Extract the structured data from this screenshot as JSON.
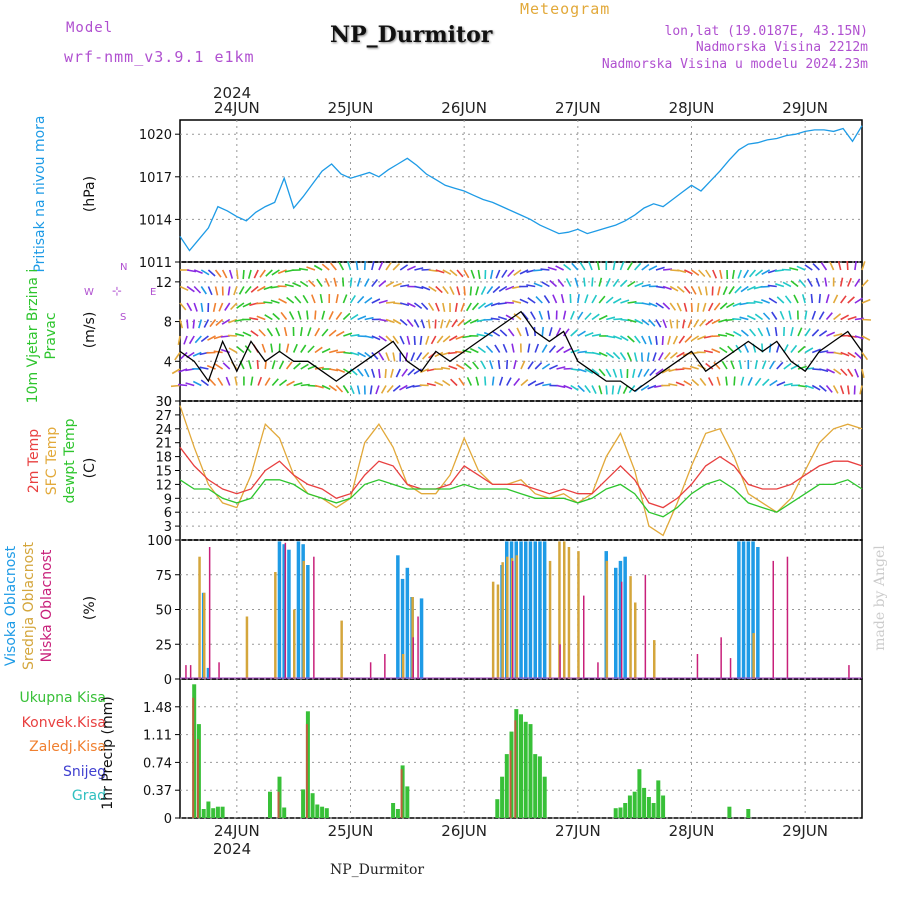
{
  "header": {
    "title": "NP_Durmitor",
    "model_label": "Model",
    "model_name": "wrf-nmm_v3.9.1 e1km",
    "meteogram_label": "Meteogram",
    "lonlat": "lon,lat (19.0187E, 43.15N)",
    "elevation": "Nadmorska Visina 2212m",
    "model_elevation": "Nadmorska Visina u modelu 2024.23m",
    "year_top": "2024",
    "year_bottom": "2024",
    "footer": "NP_Durmitor",
    "watermark": "made by Angel"
  },
  "colors": {
    "pressure": "#1e9be6",
    "temp2m": "#e84040",
    "sfc": "#e2a93a",
    "dewpt": "#2ec52e",
    "high_cloud": "#1e9be6",
    "mid_cloud": "#d4a63c",
    "low_cloud": "#c8207a",
    "total_precip": "#38c038",
    "conv_precip": "#e84040",
    "frozen": "#f08030",
    "snow": "#4040d0",
    "graupel": "#30c0c0",
    "wind_label": "#2ec52e",
    "wind_compass": "#b050d0",
    "watermark": "#cccccc"
  },
  "chart_data": [
    {
      "type": "line",
      "panel": "pressure",
      "ylabel_left": "Pritisak na nivou mora",
      "unit": "(hPa)",
      "xlim": [
        0,
        144
      ],
      "ylim": [
        1011,
        1021
      ],
      "yticks": [
        "1011",
        "1014",
        "1017",
        "1020"
      ],
      "x_ticks": [
        "24JUN",
        "25JUN",
        "26JUN",
        "27JUN",
        "28JUN",
        "29JUN"
      ],
      "series": [
        {
          "x": [
            0,
            2,
            4,
            6,
            8,
            10,
            12,
            14,
            16,
            18,
            20,
            22,
            24,
            26,
            28,
            30,
            32,
            34,
            36,
            38,
            40,
            42,
            44,
            46,
            48,
            50,
            52,
            54,
            56,
            58,
            60,
            62,
            64,
            66,
            68,
            70,
            72,
            74,
            76,
            78,
            80,
            82,
            84,
            86,
            88,
            90,
            92,
            94,
            96,
            98,
            100,
            102,
            104,
            106,
            108,
            110,
            112,
            114,
            116,
            118,
            120,
            122,
            124,
            126,
            128,
            130,
            132,
            134,
            136,
            138,
            140,
            142,
            144
          ],
          "values": [
            1012.8,
            1011.8,
            1012.6,
            1013.4,
            1014.9,
            1014.6,
            1014.2,
            1013.9,
            1014.5,
            1014.9,
            1015.2,
            1016.9,
            1014.8,
            1015.6,
            1016.5,
            1017.4,
            1017.9,
            1017.2,
            1016.9,
            1017.1,
            1017.3,
            1017.0,
            1017.5,
            1017.9,
            1018.3,
            1017.8,
            1017.2,
            1016.8,
            1016.4,
            1016.2,
            1016.0,
            1015.7,
            1015.4,
            1015.2,
            1014.9,
            1014.6,
            1014.3,
            1014.0,
            1013.6,
            1013.3,
            1013.0,
            1013.1,
            1013.3,
            1013.0,
            1013.2,
            1013.4,
            1013.6,
            1013.9,
            1014.3,
            1014.8,
            1015.1,
            1014.9,
            1015.4,
            1015.9,
            1016.4,
            1016.0,
            1016.7,
            1017.4,
            1018.2,
            1018.9,
            1019.3,
            1019.4,
            1019.6,
            1019.7,
            1019.9,
            1020.0,
            1020.2,
            1020.3,
            1020.3,
            1020.2,
            1020.4,
            1019.5,
            1020.6
          ]
        }
      ]
    },
    {
      "type": "line",
      "panel": "wind",
      "ylabel_left": "10m Vjetar Brzina i Pravac",
      "unit": "(m/s)",
      "compass": [
        "N",
        "S",
        "W",
        "E"
      ],
      "ylim": [
        0,
        14
      ],
      "yticks": [
        "0",
        "4",
        "8",
        "12"
      ],
      "series": [
        {
          "name": "speed",
          "x": [
            0,
            3,
            6,
            9,
            12,
            15,
            18,
            21,
            24,
            27,
            30,
            33,
            36,
            39,
            42,
            45,
            48,
            51,
            54,
            57,
            60,
            63,
            66,
            69,
            72,
            75,
            78,
            81,
            84,
            87,
            90,
            93,
            96,
            99,
            102,
            105,
            108,
            111,
            114,
            117,
            120,
            123,
            126,
            129,
            132,
            135,
            138,
            141,
            144
          ],
          "values": [
            5,
            4,
            2,
            6,
            3,
            6,
            4,
            5,
            4,
            4,
            3,
            2,
            3,
            4,
            5,
            6,
            4,
            3,
            5,
            4,
            5,
            6,
            7,
            8,
            9,
            7,
            6,
            7,
            4,
            3,
            2,
            2,
            1,
            2,
            3,
            4,
            5,
            3,
            4,
            5,
            6,
            5,
            6,
            4,
            3,
            5,
            6,
            7,
            5
          ]
        }
      ]
    },
    {
      "type": "line",
      "panel": "temperature",
      "ylabel_parts": [
        "2m Temp",
        "SFC Temp",
        "dewpt Temp"
      ],
      "unit": "(C)",
      "ylim": [
        0,
        30
      ],
      "yticks": [
        "0",
        "3",
        "6",
        "9",
        "12",
        "15",
        "18",
        "21",
        "24",
        "27",
        "30"
      ],
      "series": [
        {
          "name": "2m Temp",
          "x": [
            0,
            3,
            6,
            9,
            12,
            15,
            18,
            21,
            24,
            27,
            30,
            33,
            36,
            39,
            42,
            45,
            48,
            51,
            54,
            57,
            60,
            63,
            66,
            69,
            72,
            75,
            78,
            81,
            84,
            87,
            90,
            93,
            96,
            99,
            102,
            105,
            108,
            111,
            114,
            117,
            120,
            123,
            126,
            129,
            132,
            135,
            138,
            141,
            144
          ],
          "values": [
            20,
            16,
            13,
            11,
            10,
            11,
            15,
            17,
            14,
            12,
            11,
            9,
            10,
            14,
            17,
            16,
            12,
            11,
            11,
            12,
            16,
            14,
            12,
            12,
            12,
            11,
            10,
            11,
            10,
            10,
            13,
            16,
            13,
            8,
            7,
            9,
            12,
            16,
            18,
            16,
            12,
            11,
            11,
            12,
            14,
            16,
            17,
            17,
            16
          ]
        },
        {
          "name": "SFC Temp",
          "x": [
            0,
            3,
            6,
            9,
            12,
            15,
            18,
            21,
            24,
            27,
            30,
            33,
            36,
            39,
            42,
            45,
            48,
            51,
            54,
            57,
            60,
            63,
            66,
            69,
            72,
            75,
            78,
            81,
            84,
            87,
            90,
            93,
            96,
            99,
            102,
            105,
            108,
            111,
            114,
            117,
            120,
            123,
            126,
            129,
            132,
            135,
            138,
            141,
            144
          ],
          "values": [
            29,
            20,
            12,
            8,
            7,
            14,
            25,
            22,
            14,
            10,
            9,
            7,
            9,
            21,
            25,
            20,
            12,
            10,
            10,
            14,
            22,
            15,
            12,
            12,
            13,
            10,
            9,
            10,
            8,
            10,
            18,
            23,
            15,
            3,
            1,
            8,
            16,
            23,
            24,
            18,
            10,
            8,
            6,
            9,
            15,
            21,
            24,
            25,
            24
          ]
        },
        {
          "name": "dewpt Temp",
          "x": [
            0,
            3,
            6,
            9,
            12,
            15,
            18,
            21,
            24,
            27,
            30,
            33,
            36,
            39,
            42,
            45,
            48,
            51,
            54,
            57,
            60,
            63,
            66,
            69,
            72,
            75,
            78,
            81,
            84,
            87,
            90,
            93,
            96,
            99,
            102,
            105,
            108,
            111,
            114,
            117,
            120,
            123,
            126,
            129,
            132,
            135,
            138,
            141,
            144
          ],
          "values": [
            13,
            11,
            11,
            9,
            8,
            9,
            13,
            13,
            12,
            10,
            9,
            8,
            9,
            12,
            13,
            12,
            11,
            11,
            11,
            11,
            12,
            11,
            11,
            11,
            10,
            9,
            9,
            9,
            8,
            9,
            11,
            12,
            10,
            6,
            5,
            7,
            10,
            12,
            13,
            11,
            8,
            7,
            6,
            8,
            10,
            12,
            12,
            13,
            11
          ]
        }
      ]
    },
    {
      "type": "bar",
      "panel": "cloud",
      "ylabel_parts": [
        "Visoka Oblacnost",
        "Srednja Oblacnost",
        "Niska Oblacnost"
      ],
      "unit": "(%)",
      "ylim": [
        0,
        100
      ],
      "yticks": [
        "0",
        "25",
        "50",
        "75",
        "100"
      ],
      "series": [
        {
          "name": "Visoka Oblacnost",
          "x": [
            5,
            6,
            21,
            22,
            23,
            25,
            26,
            27,
            46,
            47,
            48,
            49,
            51,
            68,
            69,
            70,
            71,
            72,
            73,
            74,
            75,
            76,
            77,
            90,
            92,
            93,
            94,
            118,
            119,
            120,
            121,
            122
          ],
          "values": [
            62,
            8,
            99,
            97,
            93,
            99,
            97,
            82,
            89,
            72,
            80,
            59,
            58,
            82,
            99,
            99,
            99,
            99,
            99,
            99,
            99,
            99,
            99,
            92,
            80,
            85,
            88,
            99,
            99,
            99,
            99,
            95
          ]
        },
        {
          "name": "Srednja Oblacnost",
          "x": [
            4,
            5,
            14,
            20,
            24,
            26,
            34,
            47,
            49,
            66,
            67,
            68,
            69,
            70,
            71,
            78,
            80,
            81,
            82,
            84,
            90,
            95,
            96,
            100,
            121
          ],
          "values": [
            88,
            62,
            45,
            77,
            50,
            85,
            42,
            18,
            59,
            70,
            68,
            84,
            88,
            87,
            89,
            85,
            99,
            99,
            95,
            92,
            85,
            74,
            55,
            28,
            33
          ]
        },
        {
          "name": "Niska Oblacnost",
          "x": [
            1,
            2,
            6,
            8,
            22,
            28,
            40,
            43,
            49,
            50,
            70,
            80,
            85,
            88,
            93,
            98,
            109,
            114,
            116,
            125,
            128,
            141
          ],
          "values": [
            10,
            10,
            95,
            12,
            98,
            88,
            12,
            18,
            30,
            45,
            85,
            25,
            60,
            12,
            70,
            75,
            18,
            30,
            15,
            85,
            88,
            10
          ]
        }
      ]
    },
    {
      "type": "bar",
      "panel": "precip",
      "ylabel_legend": [
        "Ukupna Kisa",
        "Konvek.Kisa",
        "Zaledj.Kisa",
        "Snijeg",
        "Grad"
      ],
      "ylabel": "1hr Precip (mm)",
      "ylim": [
        0,
        1.85
      ],
      "yticks": [
        "0",
        "0.37",
        "0.74",
        "1.11",
        "1.48"
      ],
      "series": [
        {
          "name": "Ukupna Kisa",
          "x": [
            3,
            4,
            5,
            6,
            7,
            8,
            9,
            19,
            21,
            22,
            26,
            27,
            28,
            29,
            30,
            31,
            45,
            46,
            47,
            48,
            67,
            68,
            69,
            70,
            71,
            72,
            73,
            74,
            75,
            76,
            77,
            92,
            93,
            94,
            95,
            96,
            97,
            98,
            99,
            100,
            101,
            102,
            116,
            120
          ],
          "values": [
            1.78,
            1.25,
            0.12,
            0.22,
            0.13,
            0.15,
            0.15,
            0.35,
            0.55,
            0.14,
            0.38,
            1.42,
            0.33,
            0.18,
            0.15,
            0.13,
            0.2,
            0.12,
            0.7,
            0.42,
            0.25,
            0.55,
            0.85,
            1.15,
            1.45,
            1.38,
            1.28,
            1.25,
            0.85,
            0.82,
            0.55,
            0.13,
            0.14,
            0.2,
            0.3,
            0.35,
            0.65,
            0.4,
            0.28,
            0.2,
            0.5,
            0.3,
            0.15,
            0.12
          ]
        },
        {
          "name": "Konvek.Kisa",
          "x": [
            3,
            4,
            21,
            27,
            47,
            70,
            71
          ],
          "values": [
            1.6,
            1.05,
            0.35,
            1.25,
            0.65,
            0.9,
            1.3
          ]
        }
      ]
    }
  ]
}
